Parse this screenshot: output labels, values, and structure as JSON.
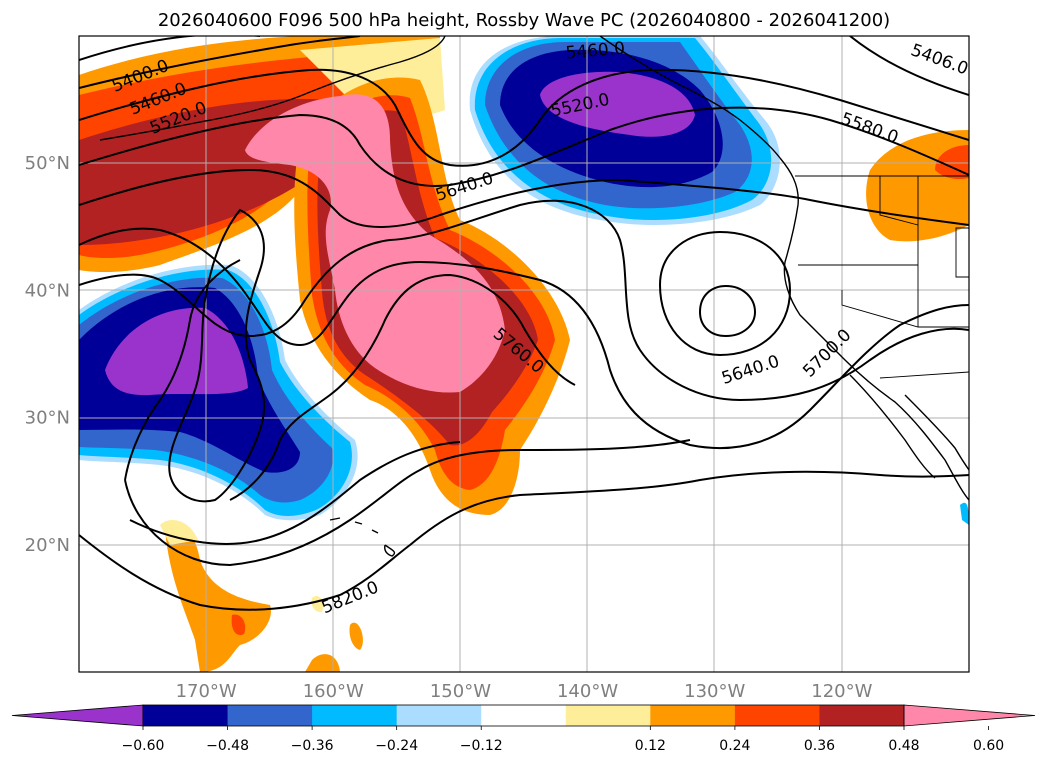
{
  "title": "2026040600 F096 500 hPa height, Rossby Wave PC (2026040800 - 2026041200)",
  "map": {
    "lon_range": [
      -180,
      -110
    ],
    "lat_range": [
      10,
      60
    ],
    "lon_ticks": [
      {
        "value": -170,
        "label": "170°W"
      },
      {
        "value": -160,
        "label": "160°W"
      },
      {
        "value": -150,
        "label": "150°W"
      },
      {
        "value": -140,
        "label": "140°W"
      },
      {
        "value": -130,
        "label": "130°W"
      },
      {
        "value": -120,
        "label": "120°W"
      }
    ],
    "lat_ticks": [
      {
        "value": 20,
        "label": "20°N"
      },
      {
        "value": 30,
        "label": "30°N"
      },
      {
        "value": 40,
        "label": "40°N"
      },
      {
        "value": 50,
        "label": "50°N"
      }
    ],
    "contour_labels": [
      {
        "text": "5400.0",
        "lon": -175.2,
        "lat": 56.9,
        "rot": -22
      },
      {
        "text": "5460.0",
        "lon": -173.8,
        "lat": 55.1,
        "rot": -22
      },
      {
        "text": "5520.0",
        "lon": -172.2,
        "lat": 53.6,
        "rot": -22
      },
      {
        "text": "5460.0",
        "lon": -139.4,
        "lat": 58.9,
        "rot": -5
      },
      {
        "text": "5520.0",
        "lon": -140.6,
        "lat": 54.6,
        "rot": -12
      },
      {
        "text": "5406.0",
        "lon": -112.3,
        "lat": 58.2,
        "rot": 20
      },
      {
        "text": "5580.0",
        "lon": -117.8,
        "lat": 52.8,
        "rot": 20
      },
      {
        "text": "5640.0",
        "lon": -149.7,
        "lat": 48.2,
        "rot": -18
      },
      {
        "text": "5760.0",
        "lon": -145.4,
        "lat": 35.3,
        "rot": 40
      },
      {
        "text": "5640.0",
        "lon": -127.2,
        "lat": 33.8,
        "rot": -18
      },
      {
        "text": "5700.0",
        "lon": -121.2,
        "lat": 35.1,
        "rot": -45
      },
      {
        "text": "5820.0",
        "lon": -158.7,
        "lat": 15.9,
        "rot": -22
      }
    ]
  },
  "colorbar": {
    "ticks": [
      "−0.60",
      "−0.48",
      "−0.36",
      "−0.24",
      "−0.12",
      "0.12",
      "0.24",
      "0.36",
      "0.48",
      "0.60"
    ],
    "colors": [
      "#9933cc",
      "#000099",
      "#3366cc",
      "#00bbff",
      "#aaddff",
      "#ffffff",
      "#ffee99",
      "#ff9900",
      "#ff4400",
      "#b22222",
      "#ff88aa"
    ]
  }
}
